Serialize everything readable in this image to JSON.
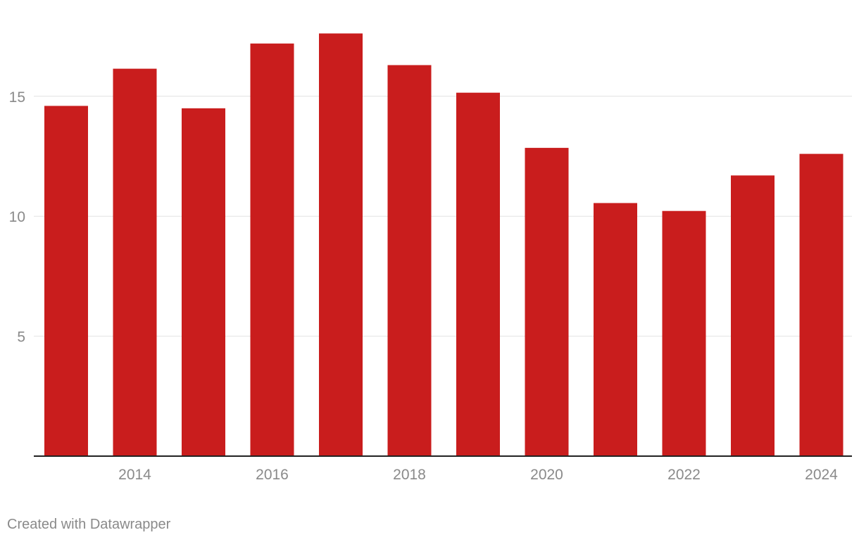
{
  "chart_data": {
    "type": "bar",
    "categories": [
      "2013",
      "2014",
      "2015",
      "2016",
      "2017",
      "2018",
      "2019",
      "2020",
      "2021",
      "2022",
      "2023",
      "2024"
    ],
    "values": [
      14.6,
      16.15,
      14.5,
      17.2,
      17.62,
      16.3,
      15.15,
      12.85,
      10.55,
      10.22,
      11.7,
      12.6
    ],
    "x_tick_labels": [
      "2014",
      "2016",
      "2018",
      "2020",
      "2022",
      "2024"
    ],
    "y_ticks": [
      5,
      10,
      15
    ],
    "ylim": [
      0,
      18.5
    ],
    "title": "",
    "xlabel": "",
    "ylabel": "",
    "grid": true,
    "bar_color": "#c91d1d",
    "gridline_color": "#e2e2e2",
    "tick_label_color": "#8a8a8a"
  },
  "footer": {
    "credit": "Created with Datawrapper"
  }
}
